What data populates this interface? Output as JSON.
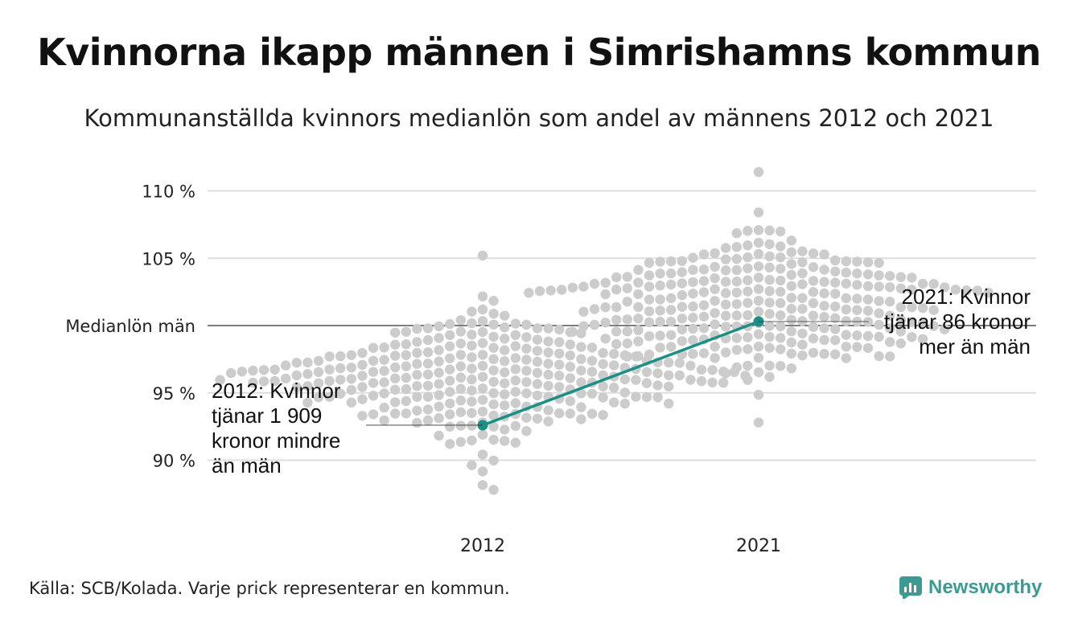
{
  "header": {
    "title": "Kvinnorna ikapp männen i Simrishamns kommun",
    "subtitle": "Kommunanställda kvinnors medianlön som andel av männens 2012 och 2021"
  },
  "footer": {
    "source": "Källa: SCB/Kolada. Varje prick representerar en kommun.",
    "brand": "Newsworthy"
  },
  "colors": {
    "highlight": "#1a9084",
    "dots": "#cccccc",
    "grid": "#dddddd",
    "brand": "#3b9a92"
  },
  "chart_data": {
    "type": "scatter",
    "subtype": "beeswarm",
    "categories": [
      "2012",
      "2021"
    ],
    "y_axis": {
      "ylim": [
        86,
        111.5
      ],
      "ticks": [
        {
          "value": 90,
          "label": "90 %"
        },
        {
          "value": 95,
          "label": "95 %"
        },
        {
          "value": 100,
          "label": "Medianlön män"
        },
        {
          "value": 105,
          "label": "105 %"
        },
        {
          "value": 110,
          "label": "110 %"
        }
      ]
    },
    "grid": true,
    "reference_line": {
      "value": 100,
      "label": "Medianlön män"
    },
    "highlight": {
      "name": "Simrishamns kommun",
      "points": [
        {
          "category": "2012",
          "value": 92.6,
          "annotation": [
            "2012: Kvinnor",
            "tjänar 1 909",
            "kronor mindre",
            "än män"
          ]
        },
        {
          "category": "2021",
          "value": 100.3,
          "annotation": [
            "2021: Kvinnor",
            "tjänar 86 kronor",
            "mer än män"
          ]
        }
      ]
    },
    "distributions": [
      {
        "category": "2012",
        "n": 290,
        "mean": 96.2,
        "sd": 2.3,
        "min": 87.8,
        "max": 105.2
      },
      {
        "category": "2021",
        "n": 290,
        "mean": 101.5,
        "sd": 2.4,
        "min": 92.8,
        "max": 111.4
      }
    ]
  }
}
